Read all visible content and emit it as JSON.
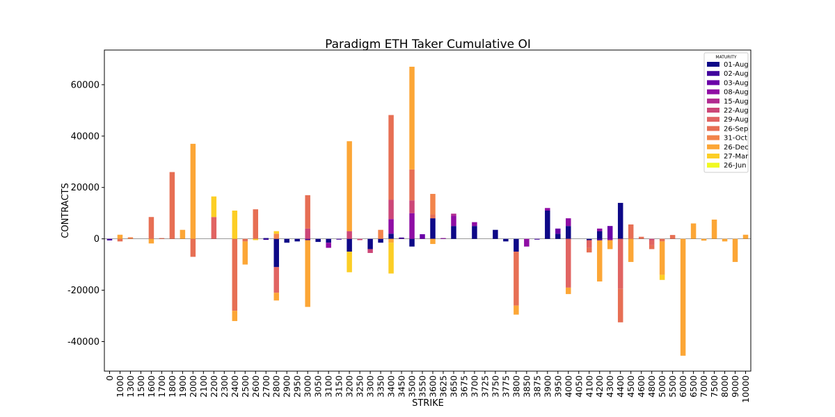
{
  "chart_data": {
    "type": "bar",
    "stacked": true,
    "title": "Paradigm ETH Taker Cumulative OI",
    "xlabel": "STRIKE",
    "ylabel": "CONTRACTS",
    "ylim": [
      -51500,
      73500
    ],
    "yticks": [
      -40000,
      -20000,
      0,
      20000,
      40000,
      60000
    ],
    "legend_title": "MATURITY",
    "legend_position": "top-right",
    "categories": [
      "0",
      "1000",
      "1300",
      "1500",
      "1600",
      "1700",
      "1800",
      "1900",
      "2000",
      "2100",
      "2200",
      "2300",
      "2400",
      "2500",
      "2600",
      "2700",
      "2800",
      "2900",
      "2950",
      "3000",
      "3050",
      "3100",
      "3150",
      "3200",
      "3250",
      "3300",
      "3350",
      "3400",
      "3450",
      "3500",
      "3550",
      "3600",
      "3625",
      "3650",
      "3675",
      "3700",
      "3725",
      "3750",
      "3775",
      "3800",
      "3850",
      "3875",
      "3900",
      "3950",
      "4000",
      "4050",
      "4100",
      "4200",
      "4300",
      "4400",
      "4500",
      "4600",
      "4800",
      "5000",
      "5500",
      "6000",
      "6500",
      "7000",
      "7500",
      "8000",
      "9000",
      "10000"
    ],
    "series": [
      {
        "name": "01-Aug",
        "color": "#0d0887",
        "values": [
          0,
          0,
          0,
          0,
          0,
          0,
          0,
          0,
          0,
          0,
          0,
          0,
          0,
          0,
          0,
          300,
          -11000,
          -1500,
          -1000,
          0,
          -1200,
          -1500,
          0,
          -5000,
          0,
          -4000,
          -1500,
          2000,
          0,
          -3000,
          0,
          8000,
          0,
          5000,
          0,
          5000,
          0,
          3500,
          -1000,
          -5000,
          0,
          0,
          11000,
          2000,
          5000,
          0,
          -500,
          3000,
          0,
          14000,
          0,
          0,
          0,
          0,
          0,
          0,
          0,
          0,
          0,
          0,
          0,
          0
        ]
      },
      {
        "name": "02-Aug",
        "color": "#41049d",
        "values": [
          -600,
          0,
          0,
          0,
          0,
          0,
          0,
          0,
          0,
          0,
          0,
          0,
          0,
          0,
          0,
          -400,
          0,
          0,
          0,
          -500,
          0,
          0,
          -300,
          0,
          0,
          0,
          0,
          0,
          500,
          0,
          0,
          0,
          0,
          0,
          0,
          0,
          0,
          0,
          0,
          0,
          0,
          -300,
          0,
          0,
          0,
          0,
          0,
          -600,
          0,
          0,
          0,
          0,
          0,
          0,
          0,
          0,
          0,
          0,
          0,
          0,
          0,
          0
        ]
      },
      {
        "name": "03-Aug",
        "color": "#6a00a8",
        "values": [
          0,
          0,
          0,
          0,
          0,
          0,
          0,
          0,
          0,
          0,
          0,
          0,
          0,
          0,
          0,
          0,
          0,
          0,
          0,
          0,
          0,
          0,
          0,
          0,
          0,
          0,
          0,
          0,
          0,
          0,
          1800,
          0,
          0,
          0,
          0,
          0,
          0,
          0,
          0,
          0,
          0,
          0,
          0,
          2000,
          0,
          0,
          0,
          0,
          5000,
          0,
          0,
          0,
          0,
          0,
          0,
          0,
          0,
          0,
          0,
          0,
          0,
          0
        ]
      },
      {
        "name": "08-Aug",
        "color": "#8f0da4",
        "values": [
          0,
          0,
          0,
          0,
          0,
          0,
          0,
          0,
          0,
          0,
          0,
          0,
          0,
          0,
          0,
          0,
          0,
          0,
          0,
          0,
          0,
          -2000,
          0,
          0,
          0,
          0,
          0,
          5700,
          0,
          10000,
          0,
          0,
          300,
          4000,
          0,
          1500,
          0,
          0,
          0,
          0,
          -3000,
          0,
          1000,
          0,
          3000,
          0,
          0,
          1000,
          -500,
          0,
          0,
          0,
          0,
          0,
          0,
          0,
          0,
          0,
          0,
          0,
          0,
          0
        ]
      },
      {
        "name": "15-Aug",
        "color": "#b12a90",
        "values": [
          0,
          0,
          0,
          0,
          0,
          0,
          0,
          0,
          0,
          0,
          0,
          0,
          0,
          0,
          0,
          0,
          0,
          0,
          0,
          0,
          0,
          0,
          0,
          0,
          0,
          0,
          0,
          0,
          0,
          0,
          0,
          0,
          0,
          800,
          0,
          0,
          0,
          0,
          0,
          0,
          0,
          0,
          0,
          0,
          0,
          0,
          0,
          0,
          0,
          0,
          0,
          0,
          0,
          0,
          0,
          0,
          0,
          0,
          0,
          0,
          0,
          0
        ]
      },
      {
        "name": "22-Aug",
        "color": "#cc4778",
        "values": [
          0,
          0,
          0,
          0,
          0,
          0,
          0,
          0,
          0,
          0,
          0,
          0,
          0,
          0,
          0,
          0,
          0,
          0,
          0,
          4000,
          0,
          0,
          0,
          3000,
          -500,
          -1500,
          0,
          7500,
          0,
          5000,
          0,
          0,
          0,
          0,
          0,
          0,
          0,
          0,
          0,
          0,
          0,
          0,
          0,
          0,
          0,
          0,
          0,
          0,
          0,
          0,
          0,
          0,
          -500,
          0,
          0,
          0,
          0,
          0,
          0,
          0,
          0,
          0
        ]
      },
      {
        "name": "29-Aug",
        "color": "#e16462",
        "values": [
          0,
          0,
          0,
          0,
          0,
          0,
          0,
          0,
          0,
          0,
          8500,
          0,
          0,
          0,
          0,
          0,
          -10000,
          0,
          0,
          0,
          0,
          0,
          0,
          0,
          0,
          0,
          0,
          0,
          0,
          0,
          0,
          0,
          0,
          0,
          0,
          0,
          0,
          0,
          0,
          0,
          0,
          0,
          0,
          0,
          -19000,
          0,
          -3000,
          0,
          0,
          -19500,
          0,
          0,
          -2000,
          0,
          0,
          0,
          0,
          0,
          0,
          0,
          0,
          0
        ]
      },
      {
        "name": "26-Sep",
        "color": "#e76f54",
        "values": [
          0,
          -1000,
          0,
          0,
          8500,
          300,
          26000,
          0,
          -7000,
          0,
          0,
          0,
          -28000,
          -1000,
          11500,
          0,
          0,
          0,
          0,
          13000,
          0,
          0,
          0,
          0,
          0,
          0,
          0,
          33000,
          0,
          12000,
          0,
          1500,
          0,
          0,
          0,
          0,
          0,
          0,
          0,
          -21000,
          0,
          0,
          0,
          0,
          0,
          0,
          -1800,
          0,
          0,
          -13000,
          5600,
          800,
          -1500,
          -1000,
          1500,
          0,
          0,
          0,
          0,
          0,
          0,
          0
        ]
      },
      {
        "name": "31-Oct",
        "color": "#f2844b",
        "values": [
          0,
          0,
          600,
          0,
          0,
          0,
          0,
          0,
          0,
          0,
          0,
          0,
          0,
          0,
          0,
          0,
          2000,
          0,
          0,
          0,
          0,
          0,
          0,
          0,
          0,
          0,
          3500,
          0,
          0,
          0,
          0,
          8000,
          0,
          0,
          0,
          0,
          0,
          0,
          0,
          0,
          0,
          0,
          0,
          0,
          0,
          0,
          0,
          0,
          0,
          0,
          0,
          0,
          0,
          0,
          0,
          0,
          0,
          0,
          0,
          0,
          0,
          0
        ]
      },
      {
        "name": "26-Dec",
        "color": "#fca636",
        "values": [
          0,
          1600,
          0,
          0,
          -1800,
          0,
          0,
          3500,
          37000,
          0,
          0,
          0,
          -4000,
          -9000,
          0,
          0,
          -3000,
          0,
          0,
          -26000,
          0,
          0,
          0,
          35000,
          0,
          0,
          0,
          -1500,
          0,
          40000,
          0,
          -2000,
          0,
          0,
          0,
          0,
          0,
          0,
          0,
          -3500,
          0,
          0,
          0,
          0,
          -2500,
          0,
          0,
          -16000,
          -3500,
          0,
          -9000,
          0,
          0,
          -13000,
          0,
          -45500,
          6000,
          -700,
          7500,
          -1000,
          -9000,
          1600
        ]
      },
      {
        "name": "27-Mar",
        "color": "#fcce25",
        "values": [
          0,
          0,
          0,
          0,
          0,
          0,
          0,
          0,
          0,
          0,
          8000,
          0,
          11000,
          0,
          -500,
          0,
          1000,
          0,
          0,
          0,
          0,
          0,
          0,
          -8000,
          0,
          0,
          0,
          -12000,
          0,
          0,
          0,
          0,
          0,
          0,
          0,
          0,
          0,
          0,
          0,
          0,
          0,
          0,
          0,
          0,
          0,
          0,
          0,
          0,
          0,
          0,
          0,
          0,
          0,
          -2000,
          0,
          0,
          0,
          0,
          0,
          0,
          0,
          0
        ]
      },
      {
        "name": "26-Jun",
        "color": "#f0f921",
        "values": [
          0,
          0,
          0,
          0,
          0,
          0,
          0,
          0,
          0,
          0,
          0,
          0,
          0,
          0,
          0,
          0,
          0,
          0,
          0,
          0,
          0,
          0,
          0,
          0,
          0,
          0,
          0,
          0,
          0,
          0,
          0,
          0,
          0,
          0,
          0,
          0,
          0,
          0,
          0,
          0,
          0,
          0,
          0,
          0,
          0,
          0,
          0,
          0,
          0,
          0,
          0,
          0,
          0,
          0,
          0,
          0,
          0,
          0,
          0,
          0,
          0,
          0
        ]
      }
    ]
  }
}
